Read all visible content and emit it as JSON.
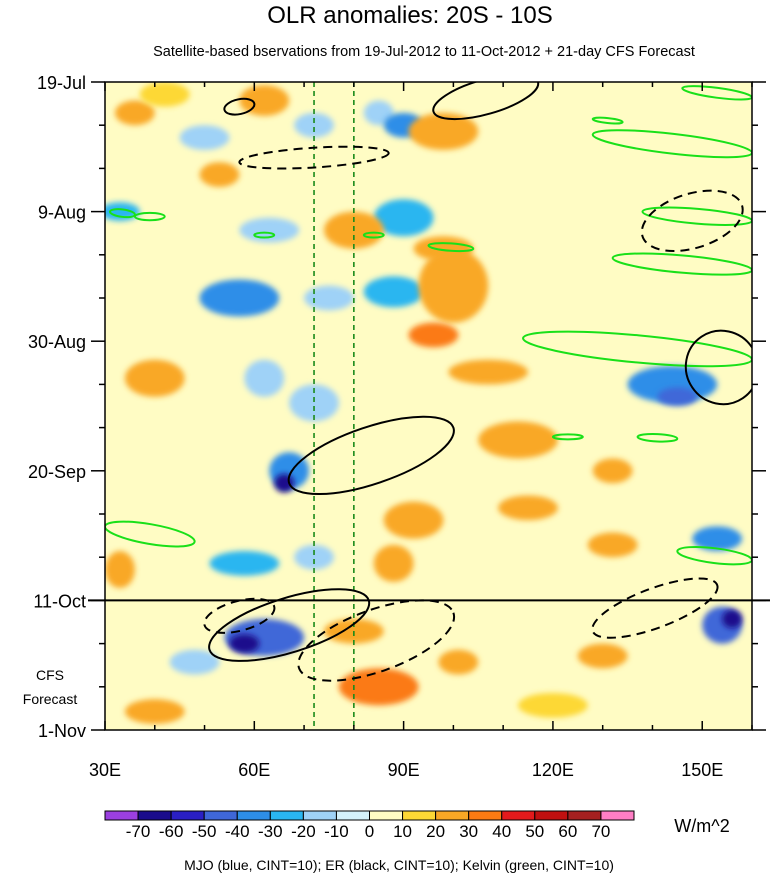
{
  "chart_data": {
    "type": "heatmap",
    "title": "OLR anomalies: 20S - 10S",
    "subtitle": "Satellite-based bservations from 19-Jul-2012 to 11-Oct-2012 + 21-day CFS Forecast",
    "x_axis": {
      "range": [
        30,
        160
      ],
      "ticks": [
        {
          "value": 30,
          "label": "30E"
        },
        {
          "value": 60,
          "label": "60E"
        },
        {
          "value": 90,
          "label": "90E"
        },
        {
          "value": 120,
          "label": "120E"
        },
        {
          "value": 150,
          "label": "150E"
        }
      ]
    },
    "y_axis": {
      "range_days": [
        0,
        105
      ],
      "ticks": [
        {
          "day": 0,
          "label": "19-Jul"
        },
        {
          "day": 21,
          "label": "9-Aug"
        },
        {
          "day": 42,
          "label": "30-Aug"
        },
        {
          "day": 63,
          "label": "20-Sep"
        },
        {
          "day": 84,
          "label": "11-Oct"
        },
        {
          "day": 105,
          "label": "1-Nov"
        }
      ]
    },
    "forecast_start_day": 84,
    "forecast_label_lines": [
      "CFS",
      "Forecast"
    ],
    "dashed_reference_longitudes": [
      72,
      80
    ],
    "colorbar": {
      "unit": "W/m^2",
      "levels": [
        -70,
        -60,
        -50,
        -40,
        -30,
        -20,
        -10,
        0,
        10,
        20,
        30,
        40,
        50,
        60,
        70
      ],
      "colors": [
        "#9b3fe0",
        "#1a0c8c",
        "#2a1fc4",
        "#3f67d8",
        "#2d8ee8",
        "#29b6f0",
        "#9fd2f7",
        "#d4f1fb",
        "#fffcc4",
        "#fdd835",
        "#f9a825",
        "#fb7a12",
        "#e31a1c",
        "#c01010",
        "#a52020",
        "#ff7ec5"
      ]
    },
    "footnote": "MJO (blue, CINT=10); ER (black, CINT=10); Kelvin (green, CINT=10)",
    "anomaly_patches": [
      {
        "lon": 33,
        "day": 21,
        "rlon": 4,
        "rday": 1.5,
        "value": -30
      },
      {
        "lon": 36,
        "day": 5,
        "rlon": 4,
        "rday": 2,
        "value": 20
      },
      {
        "lon": 42,
        "day": 2,
        "rlon": 5,
        "rday": 2,
        "value": 10
      },
      {
        "lon": 50,
        "day": 9,
        "rlon": 5,
        "rday": 2,
        "value": -20
      },
      {
        "lon": 62,
        "day": 3,
        "rlon": 5,
        "rday": 2.5,
        "value": 20
      },
      {
        "lon": 53,
        "day": 15,
        "rlon": 4,
        "rday": 2,
        "value": 20
      },
      {
        "lon": 72,
        "day": 7,
        "rlon": 4,
        "rday": 2,
        "value": -20
      },
      {
        "lon": 85,
        "day": 5,
        "rlon": 3,
        "rday": 2,
        "value": -20
      },
      {
        "lon": 90,
        "day": 7,
        "rlon": 4,
        "rday": 2,
        "value": -40
      },
      {
        "lon": 98,
        "day": 8,
        "rlon": 7,
        "rday": 3,
        "value": 20
      },
      {
        "lon": 90,
        "day": 22,
        "rlon": 6,
        "rday": 3,
        "value": -30
      },
      {
        "lon": 63,
        "day": 24,
        "rlon": 6,
        "rday": 2,
        "value": -20
      },
      {
        "lon": 80,
        "day": 24,
        "rlon": 6,
        "rday": 3,
        "value": 20
      },
      {
        "lon": 98,
        "day": 27,
        "rlon": 6,
        "rday": 2,
        "value": 20
      },
      {
        "lon": 57,
        "day": 35,
        "rlon": 8,
        "rday": 3,
        "value": -40
      },
      {
        "lon": 75,
        "day": 35,
        "rlon": 5,
        "rday": 2,
        "value": -20
      },
      {
        "lon": 88,
        "day": 34,
        "rlon": 6,
        "rday": 2.5,
        "value": -30
      },
      {
        "lon": 100,
        "day": 33,
        "rlon": 7,
        "rday": 6,
        "value": 20
      },
      {
        "lon": 96,
        "day": 41,
        "rlon": 5,
        "rday": 2,
        "value": 30
      },
      {
        "lon": 40,
        "day": 48,
        "rlon": 6,
        "rday": 3,
        "value": 20
      },
      {
        "lon": 62,
        "day": 48,
        "rlon": 4,
        "rday": 3,
        "value": -20
      },
      {
        "lon": 72,
        "day": 52,
        "rlon": 5,
        "rday": 3,
        "value": -20
      },
      {
        "lon": 107,
        "day": 47,
        "rlon": 8,
        "rday": 2,
        "value": 20
      },
      {
        "lon": 113,
        "day": 58,
        "rlon": 8,
        "rday": 3,
        "value": 20
      },
      {
        "lon": 132,
        "day": 63,
        "rlon": 4,
        "rday": 2,
        "value": 20
      },
      {
        "lon": 67,
        "day": 63,
        "rlon": 4,
        "rday": 3,
        "value": -40
      },
      {
        "lon": 66,
        "day": 65,
        "rlon": 2,
        "rday": 1.5,
        "value": -70
      },
      {
        "lon": 144,
        "day": 49,
        "rlon": 9,
        "rday": 3,
        "value": -40
      },
      {
        "lon": 145,
        "day": 51,
        "rlon": 4,
        "rday": 1.5,
        "value": -50
      },
      {
        "lon": 92,
        "day": 71,
        "rlon": 6,
        "rday": 3,
        "value": 20
      },
      {
        "lon": 115,
        "day": 69,
        "rlon": 6,
        "rday": 2,
        "value": 20
      },
      {
        "lon": 58,
        "day": 78,
        "rlon": 7,
        "rday": 2,
        "value": -30
      },
      {
        "lon": 72,
        "day": 77,
        "rlon": 4,
        "rday": 2,
        "value": -20
      },
      {
        "lon": 88,
        "day": 78,
        "rlon": 4,
        "rday": 3,
        "value": 20
      },
      {
        "lon": 153,
        "day": 74,
        "rlon": 5,
        "rday": 2,
        "value": -40
      },
      {
        "lon": 132,
        "day": 75,
        "rlon": 5,
        "rday": 2,
        "value": 20
      },
      {
        "lon": 33,
        "day": 79,
        "rlon": 3,
        "rday": 3,
        "value": 20
      },
      {
        "lon": 62,
        "day": 90,
        "rlon": 8,
        "rday": 3,
        "value": -50
      },
      {
        "lon": 58,
        "day": 91,
        "rlon": 3,
        "rday": 1.5,
        "value": -70
      },
      {
        "lon": 80,
        "day": 89,
        "rlon": 6,
        "rday": 2,
        "value": 20
      },
      {
        "lon": 48,
        "day": 94,
        "rlon": 5,
        "rday": 2,
        "value": -20
      },
      {
        "lon": 85,
        "day": 98,
        "rlon": 8,
        "rday": 3,
        "value": 30
      },
      {
        "lon": 101,
        "day": 94,
        "rlon": 4,
        "rday": 2,
        "value": 20
      },
      {
        "lon": 130,
        "day": 93,
        "rlon": 5,
        "rday": 2,
        "value": 20
      },
      {
        "lon": 154,
        "day": 88,
        "rlon": 4,
        "rday": 3,
        "value": -50
      },
      {
        "lon": 156,
        "day": 87,
        "rlon": 2,
        "rday": 1.5,
        "value": -70
      },
      {
        "lon": 40,
        "day": 102,
        "rlon": 6,
        "rday": 2,
        "value": 20
      },
      {
        "lon": 120,
        "day": 101,
        "rlon": 7,
        "rday": 2,
        "value": 10
      }
    ],
    "er_contours_solid": [
      {
        "lon1": 54,
        "day1": 4.5,
        "lon2": 60,
        "day2": 3.5,
        "width": 0.6
      },
      {
        "lon1": 96,
        "day1": 4.8,
        "lon2": 117,
        "day2": 0,
        "width": 1.4
      },
      {
        "lon1": 148,
        "day1": 49.5,
        "lon2": 160,
        "day2": 43,
        "width": 3
      },
      {
        "lon1": 67,
        "day1": 65,
        "lon2": 100,
        "day2": 56,
        "width": 2.3
      },
      {
        "lon1": 51,
        "day1": 92,
        "lon2": 83,
        "day2": 84,
        "width": 2.2
      }
    ],
    "er_contours_dashed": [
      {
        "lon1": 57,
        "day1": 13,
        "lon2": 87,
        "day2": 11.5,
        "width": 0.8
      },
      {
        "lon1": 138,
        "day1": 25,
        "lon2": 158,
        "day2": 20,
        "width": 2.2
      },
      {
        "lon1": 50,
        "day1": 88,
        "lon2": 64,
        "day2": 85,
        "width": 1.2
      },
      {
        "lon1": 69,
        "day1": 95,
        "lon2": 100,
        "day2": 86,
        "width": 2.5
      },
      {
        "lon1": 128,
        "day1": 89,
        "lon2": 153,
        "day2": 81.5,
        "width": 1.6
      }
    ],
    "kelvin_contours": [
      {
        "lon1": 146,
        "day1": 1,
        "lon2": 160,
        "day2": 2.5,
        "width": 0.4
      },
      {
        "lon1": 128,
        "day1": 8.5,
        "lon2": 160,
        "day2": 11.5,
        "width": 0.8
      },
      {
        "lon1": 128,
        "day1": 6,
        "lon2": 134,
        "day2": 6.5,
        "width": 0.2
      },
      {
        "lon1": 31,
        "day1": 21,
        "lon2": 36,
        "day2": 21.5,
        "width": 0.3
      },
      {
        "lon1": 36,
        "day1": 21.8,
        "lon2": 42,
        "day2": 21.8,
        "width": 0.3
      },
      {
        "lon1": 60,
        "day1": 24.8,
        "lon2": 64,
        "day2": 24.8,
        "width": 0.2
      },
      {
        "lon1": 82,
        "day1": 24.8,
        "lon2": 86,
        "day2": 24.8,
        "width": 0.2
      },
      {
        "lon1": 95,
        "day1": 26.5,
        "lon2": 104,
        "day2": 27,
        "width": 0.3
      },
      {
        "lon1": 138,
        "day1": 21,
        "lon2": 160,
        "day2": 22.5,
        "width": 0.6
      },
      {
        "lon1": 132,
        "day1": 28.5,
        "lon2": 160,
        "day2": 30.5,
        "width": 0.7
      },
      {
        "lon1": 114,
        "day1": 41.5,
        "lon2": 160,
        "day2": 45,
        "width": 1.1
      },
      {
        "lon1": 120,
        "day1": 57.5,
        "lon2": 126,
        "day2": 57.5,
        "width": 0.2
      },
      {
        "lon1": 137,
        "day1": 57.5,
        "lon2": 145,
        "day2": 57.8,
        "width": 0.3
      },
      {
        "lon1": 30,
        "day1": 72,
        "lon2": 48,
        "day2": 74.5,
        "width": 0.8
      },
      {
        "lon1": 145,
        "day1": 76,
        "lon2": 160,
        "day2": 77.5,
        "width": 0.6
      }
    ]
  }
}
